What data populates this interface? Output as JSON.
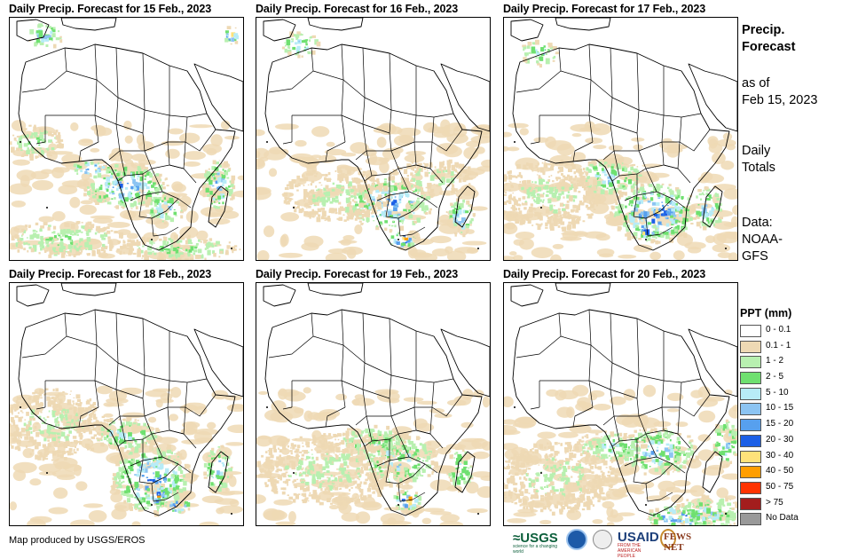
{
  "panels": [
    {
      "title": "Daily Precip. Forecast for 15 Feb., 2023"
    },
    {
      "title": "Daily Precip. Forecast for 16 Feb., 2023"
    },
    {
      "title": "Daily Precip. Forecast for 17 Feb., 2023"
    },
    {
      "title": "Daily Precip. Forecast for 18 Feb., 2023"
    },
    {
      "title": "Daily Precip. Forecast for 19 Feb., 2023"
    },
    {
      "title": "Daily Precip. Forecast for 20 Feb., 2023"
    }
  ],
  "side": {
    "title_line1": "Precip.",
    "title_line2": "Forecast",
    "asof_line1": "as of",
    "asof_line2": "Feb 15, 2023",
    "totals_line1": "Daily",
    "totals_line2": "Totals",
    "data_line1": "Data:",
    "data_line2": "NOAA-",
    "data_line3": "GFS"
  },
  "legend": {
    "title": "PPT (mm)",
    "items": [
      {
        "label": "0 - 0.1",
        "color": "#ffffff"
      },
      {
        "label": "0.1 - 1",
        "color": "#eed9b4"
      },
      {
        "label": "1 - 2",
        "color": "#b8f0b0"
      },
      {
        "label": "2 - 5",
        "color": "#6fe070"
      },
      {
        "label": "5 - 10",
        "color": "#b7ecf7"
      },
      {
        "label": "10 - 15",
        "color": "#8cc4f2"
      },
      {
        "label": "15 - 20",
        "color": "#57a0ee"
      },
      {
        "label": "20 - 30",
        "color": "#1c5fe6"
      },
      {
        "label": "30 - 40",
        "color": "#ffe27a"
      },
      {
        "label": "40 - 50",
        "color": "#ff9e00"
      },
      {
        "label": "50 - 75",
        "color": "#ff3300"
      },
      {
        "label": "> 75",
        "color": "#a31d1d"
      },
      {
        "label": "No Data",
        "color": "#999999"
      }
    ]
  },
  "credit": "Map produced by USGS/EROS",
  "logos": {
    "usgs": "≈USGS",
    "usgs_tagline": "science for a changing world",
    "usaid": "USAID",
    "usaid_tagline": "FROM THE AMERICAN PEOPLE",
    "fews": "FEWS NET"
  }
}
